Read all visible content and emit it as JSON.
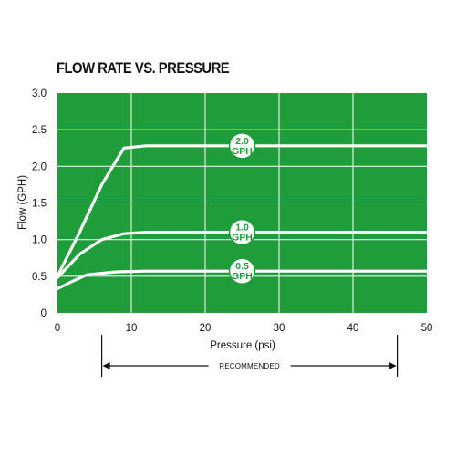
{
  "chart_data": {
    "type": "line",
    "title": "FLOW RATE VS. PRESSURE",
    "xlabel": "Pressure (psi)",
    "ylabel": "Flow (GPH)",
    "xlim": [
      0,
      50
    ],
    "ylim": [
      0,
      3.0
    ],
    "x_ticks": [
      "0",
      "10",
      "20",
      "30",
      "40",
      "50"
    ],
    "y_ticks": [
      "0",
      "0.5",
      "1.0",
      "1.5",
      "2.0",
      "2.5",
      "3.0"
    ],
    "grid": true,
    "background_color": "#1f9d3a",
    "line_color": "#ffffff",
    "series": [
      {
        "label_line1": "2.0",
        "label_line2": "GPH",
        "label_x": 25,
        "points": [
          [
            0,
            0.5
          ],
          [
            3,
            1.1
          ],
          [
            6,
            1.75
          ],
          [
            9,
            2.25
          ],
          [
            12,
            2.28
          ],
          [
            20,
            2.28
          ],
          [
            50,
            2.28
          ]
        ]
      },
      {
        "label_line1": "1.0",
        "label_line2": "GPH",
        "label_x": 25,
        "points": [
          [
            0,
            0.48
          ],
          [
            3,
            0.8
          ],
          [
            6,
            1.0
          ],
          [
            9,
            1.08
          ],
          [
            12,
            1.1
          ],
          [
            20,
            1.1
          ],
          [
            50,
            1.1
          ]
        ]
      },
      {
        "label_line1": "0.5",
        "label_line2": "GPH",
        "label_x": 25,
        "points": [
          [
            0,
            0.33
          ],
          [
            2,
            0.43
          ],
          [
            4,
            0.52
          ],
          [
            8,
            0.56
          ],
          [
            12,
            0.57
          ],
          [
            20,
            0.57
          ],
          [
            50,
            0.57
          ]
        ]
      }
    ],
    "annotations": {
      "recommended_label": "RECOMMENDED",
      "recommended_range": [
        6,
        46
      ]
    }
  }
}
